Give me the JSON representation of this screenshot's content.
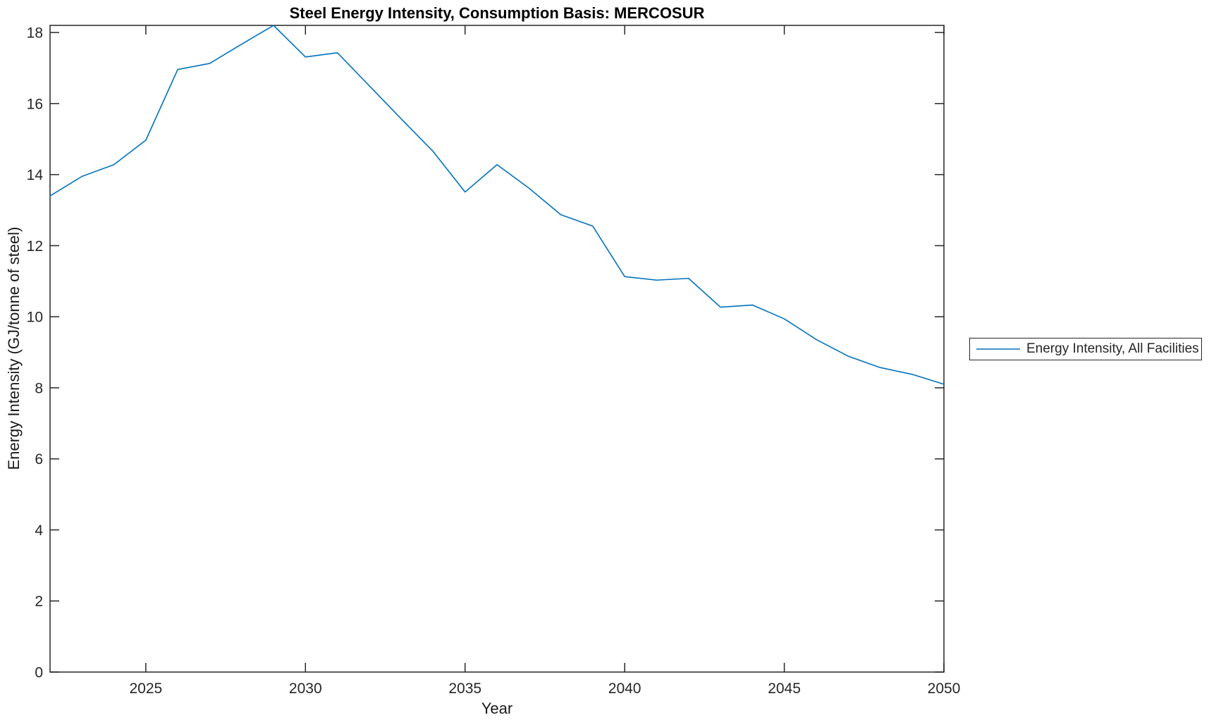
{
  "figure": {
    "title": "Steel Energy Intensity, Consumption Basis: MERCOSUR",
    "xlabel": "Year",
    "ylabel": "Energy Intensity (GJ/tonne of steel)"
  },
  "legend": {
    "entries": [
      {
        "label": "Energy Intensity, All Facilities",
        "color": "#0072BD"
      }
    ],
    "position": "outside-right"
  },
  "colors": {
    "line": "#0072BD",
    "axis": "#262626",
    "background": "#ffffff"
  },
  "chart_data": {
    "type": "line",
    "title": "Steel Energy Intensity, Consumption Basis: MERCOSUR",
    "xlabel": "Year",
    "ylabel": "Energy Intensity (GJ/tonne of steel)",
    "xlim": [
      2022,
      2050
    ],
    "ylim": [
      0,
      18.2
    ],
    "xticks": [
      2025,
      2030,
      2035,
      2040,
      2045,
      2050
    ],
    "yticks": [
      0,
      2,
      4,
      6,
      8,
      10,
      12,
      14,
      16,
      18
    ],
    "grid": false,
    "legend_position": "outside-right",
    "series": [
      {
        "name": "Energy Intensity, All Facilities",
        "color": "#0072BD",
        "x": [
          2022,
          2023,
          2024,
          2025,
          2026,
          2027,
          2028,
          2029,
          2030,
          2031,
          2032,
          2033,
          2034,
          2035,
          2036,
          2037,
          2038,
          2039,
          2040,
          2041,
          2042,
          2043,
          2044,
          2045,
          2046,
          2047,
          2048,
          2049,
          2050
        ],
        "y": [
          13.4,
          13.95,
          14.28,
          14.97,
          16.96,
          17.13,
          17.67,
          18.2,
          17.31,
          17.43,
          16.5,
          15.57,
          14.65,
          13.51,
          14.28,
          13.62,
          12.87,
          12.55,
          11.13,
          11.03,
          11.08,
          10.27,
          10.33,
          9.94,
          9.36,
          8.89,
          8.57,
          8.38,
          8.1
        ]
      }
    ]
  }
}
